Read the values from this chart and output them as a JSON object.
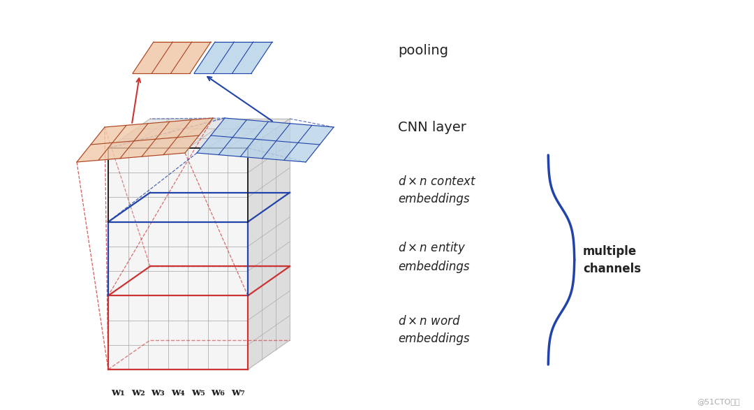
{
  "bg_color": "#ffffff",
  "red_color": "#cc3333",
  "blue_color": "#2244aa",
  "salmon_color": "#f0c8a8",
  "lightblue_color": "#b8d4e8",
  "grid_color": "#aaaaaa",
  "black_color": "#222222",
  "dark_color": "#333333",
  "w_labels": [
    "w₁",
    "w₂",
    "w₃",
    "w₄",
    "w₅",
    "w₆",
    "w₇"
  ],
  "text_pooling": "pooling",
  "text_cnn": "CNN layer",
  "text_context": "$d\\times n$ context\nembeddings",
  "text_entity": "$d\\times n$ entity\nembeddings",
  "text_word": "$d\\times n$ word\nembeddings",
  "text_channels": "multiple\nchannels",
  "text_watermark": "@51CTO博客"
}
